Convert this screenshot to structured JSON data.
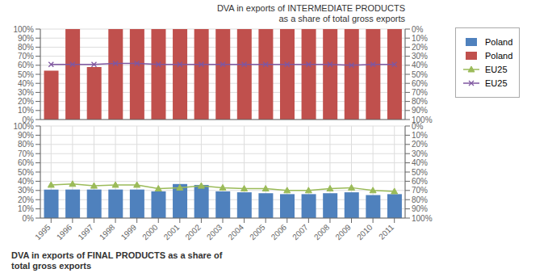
{
  "chart_data": [
    {
      "type": "bar",
      "title": "DVA in exports of INTERMEDIATE PRODUCTS\nas a share of total gross exports",
      "categories": [
        "1995",
        "1996",
        "1997",
        "1998",
        "1999",
        "2000",
        "2001",
        "2002",
        "2003",
        "2004",
        "2005",
        "2006",
        "2007",
        "2008",
        "2009",
        "2010",
        "2011"
      ],
      "series": [
        {
          "name": "Poland",
          "type": "bar",
          "color": "#c0504d",
          "values": [
            54,
            100,
            58,
            100,
            100,
            100,
            100,
            100,
            100,
            100,
            100,
            100,
            100,
            100,
            100,
            100,
            100
          ]
        },
        {
          "name": "EU25",
          "type": "line",
          "color": "#7f57a0",
          "marker": "x",
          "values": [
            61,
            61,
            61,
            62,
            62,
            61,
            61,
            61,
            61,
            61,
            61,
            61,
            61,
            61,
            60,
            61,
            61
          ]
        }
      ],
      "ylim": [
        0,
        100
      ],
      "yticks": [
        {
          "value": 0,
          "label": "0%"
        },
        {
          "value": 10,
          "label": "10%"
        },
        {
          "value": 20,
          "label": "20%"
        },
        {
          "value": 30,
          "label": "30%"
        },
        {
          "value": 40,
          "label": "40%"
        },
        {
          "value": 50,
          "label": "50%"
        },
        {
          "value": 60,
          "label": "60%"
        },
        {
          "value": 70,
          "label": "70%"
        },
        {
          "value": 80,
          "label": "80%"
        },
        {
          "value": 90,
          "label": "90%"
        },
        {
          "value": 100,
          "label": "100%"
        }
      ],
      "y2lim": [
        100,
        0
      ],
      "y2ticks": [
        {
          "value": 0,
          "label": "0%"
        },
        {
          "value": 10,
          "label": "10%"
        },
        {
          "value": 20,
          "label": "20%"
        },
        {
          "value": 30,
          "label": "30%"
        },
        {
          "value": 40,
          "label": "40%"
        },
        {
          "value": 50,
          "label": "50%"
        },
        {
          "value": 60,
          "label": "60%"
        },
        {
          "value": 70,
          "label": "70%"
        },
        {
          "value": 80,
          "label": "80%"
        },
        {
          "value": 90,
          "label": "90%"
        },
        {
          "value": 100,
          "label": "100%"
        }
      ],
      "grid": true,
      "legend": "right",
      "tick_labels": "y"
    },
    {
      "type": "bar",
      "title": "DVA in exports of FINAL PRODUCTS as a share of\ntotal gross exports",
      "categories": [
        "1995",
        "1996",
        "1997",
        "1998",
        "1999",
        "2000",
        "2001",
        "2002",
        "2003",
        "2004",
        "2005",
        "2006",
        "2007",
        "2008",
        "2009",
        "2010",
        "2011"
      ],
      "series": [
        {
          "name": "Poland",
          "type": "bar",
          "color": "#4f81bd",
          "values": [
            31,
            31,
            31,
            31,
            31,
            29,
            37,
            36,
            29,
            28,
            27,
            26,
            26,
            27,
            28,
            25,
            26
          ]
        },
        {
          "name": "EU25",
          "type": "line",
          "color": "#9bbb59",
          "marker": "triangle",
          "values": [
            36,
            37,
            35,
            36,
            36,
            32,
            33,
            35,
            33,
            32,
            32,
            30,
            30,
            32,
            33,
            30,
            29
          ]
        }
      ],
      "ylim": [
        0,
        100
      ],
      "yticks": [
        {
          "value": 0,
          "label": "0%"
        },
        {
          "value": 10,
          "label": "10%"
        },
        {
          "value": 20,
          "label": "20%"
        },
        {
          "value": 30,
          "label": "30%"
        },
        {
          "value": 40,
          "label": "40%"
        },
        {
          "value": 50,
          "label": "50%"
        },
        {
          "value": 60,
          "label": "60%"
        },
        {
          "value": 70,
          "label": "70%"
        },
        {
          "value": 80,
          "label": "80%"
        },
        {
          "value": 90,
          "label": "90%"
        },
        {
          "value": 100,
          "label": "100%"
        }
      ],
      "y2lim": [
        100,
        0
      ],
      "y2ticks": [
        {
          "value": 0,
          "label": "0%"
        },
        {
          "value": 10,
          "label": "10%"
        },
        {
          "value": 20,
          "label": "20%"
        },
        {
          "value": 30,
          "label": "30%"
        },
        {
          "value": 40,
          "label": "40%"
        },
        {
          "value": 50,
          "label": "50%"
        },
        {
          "value": 60,
          "label": "60%"
        },
        {
          "value": 70,
          "label": "70%"
        },
        {
          "value": 80,
          "label": "80%"
        },
        {
          "value": 90,
          "label": "90%"
        },
        {
          "value": 100,
          "label": "100%"
        }
      ],
      "grid": true
    }
  ]
}
